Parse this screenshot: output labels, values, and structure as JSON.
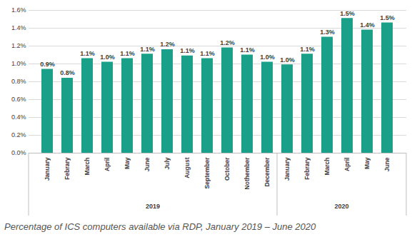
{
  "chart_data": {
    "type": "bar",
    "title": "Percentage of ICS computers available via RDP, January 2019 – June 2020",
    "categories": [
      "January",
      "Febrary",
      "March",
      "April",
      "May",
      "June",
      "July",
      "August",
      "September",
      "October",
      "Nothember",
      "December",
      "January",
      "Febrary",
      "March",
      "April",
      "May",
      "June"
    ],
    "groups": [
      "2019",
      "2019",
      "2019",
      "2019",
      "2019",
      "2019",
      "2019",
      "2019",
      "2019",
      "2019",
      "2019",
      "2019",
      "2020",
      "2020",
      "2020",
      "2020",
      "2020",
      "2020"
    ],
    "values": [
      0.94,
      0.84,
      1.06,
      1.02,
      1.06,
      1.11,
      1.16,
      1.09,
      1.06,
      1.18,
      1.1,
      1.02,
      0.99,
      1.11,
      1.3,
      1.51,
      1.38,
      1.46
    ],
    "value_labels": [
      "0.9%",
      "0.8%",
      "1.1%",
      "1.0%",
      "1.1%",
      "1.1%",
      "1.2%",
      "1.1%",
      "1.1%",
      "1.2%",
      "1.1%",
      "1.0%",
      "1.0%",
      "1.1%",
      "1.3%",
      "1.5%",
      "1.4%",
      "1.5%"
    ],
    "color": "#1aa088",
    "ylim": [
      0,
      1.6
    ],
    "yticks": [
      {
        "value": 0,
        "label": "0.0%"
      },
      {
        "value": 0.2,
        "label": "0.2%"
      },
      {
        "value": 0.4,
        "label": "0.4%"
      },
      {
        "value": 0.6,
        "label": "0.6%"
      },
      {
        "value": 0.8,
        "label": "0.8%"
      },
      {
        "value": 1.0,
        "label": "1.0%"
      },
      {
        "value": 1.2,
        "label": "1.2%"
      },
      {
        "value": 1.4,
        "label": "1.4%"
      },
      {
        "value": 1.6,
        "label": "1.6%"
      }
    ],
    "grid": true,
    "data_labels": true
  }
}
